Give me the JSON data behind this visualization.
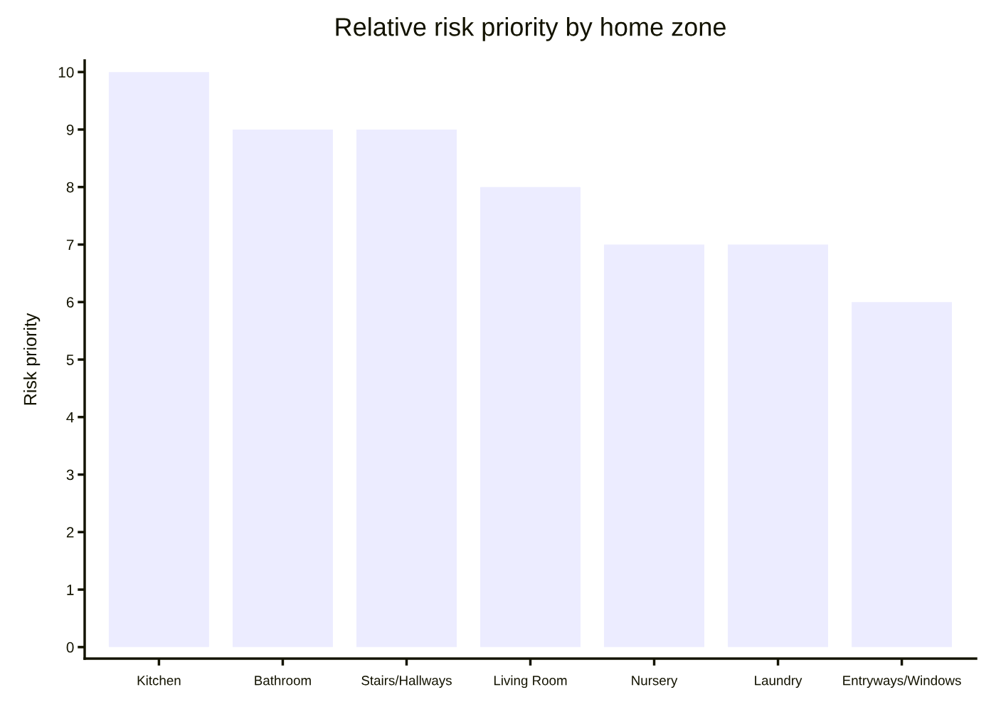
{
  "chart_data": {
    "type": "bar",
    "title": "Relative risk priority by home zone",
    "ylabel": "Risk priority",
    "categories": [
      "Kitchen",
      "Bathroom",
      "Stairs/Hallways",
      "Living Room",
      "Nursery",
      "Laundry",
      "Entryways/Windows"
    ],
    "values": [
      10,
      9,
      9,
      8,
      7,
      7,
      6
    ],
    "color": "#ececff",
    "ylim": [
      -0.2,
      10.2
    ],
    "yticks": [
      0,
      1,
      2,
      3,
      4,
      5,
      6,
      7,
      8,
      9,
      10
    ],
    "grid": false,
    "legend": false
  }
}
